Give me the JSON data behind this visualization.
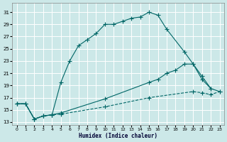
{
  "xlabel": "Humidex (Indice chaleur)",
  "bg_color": "#cce8e8",
  "grid_color": "#ffffff",
  "line_color": "#006666",
  "xlim": [
    -0.5,
    23.5
  ],
  "ylim": [
    12.5,
    32.5
  ],
  "yticks": [
    13,
    15,
    17,
    19,
    21,
    23,
    25,
    27,
    29,
    31
  ],
  "xticks": [
    0,
    1,
    2,
    3,
    4,
    5,
    6,
    7,
    8,
    9,
    10,
    11,
    12,
    13,
    14,
    15,
    16,
    17,
    18,
    19,
    20,
    21,
    22,
    23
  ],
  "line1_x": [
    0,
    1,
    2,
    3,
    4,
    5,
    6,
    7,
    8,
    9,
    10,
    11,
    12,
    13,
    14,
    15,
    16,
    17,
    19,
    20,
    21,
    22
  ],
  "line1_y": [
    16,
    16,
    13.5,
    14,
    14.2,
    19.5,
    23,
    25.5,
    26.5,
    27.5,
    29,
    29,
    29.5,
    30,
    30.2,
    31,
    30.5,
    28.2,
    24.5,
    22.5,
    20,
    18.5
  ],
  "line2_x": [
    0,
    1,
    2,
    3,
    4,
    5,
    10,
    15,
    16,
    17,
    18,
    19,
    20,
    21,
    22,
    23
  ],
  "line2_y": [
    16,
    16,
    13.5,
    14,
    14.2,
    14.5,
    16.8,
    19.5,
    20,
    21,
    21.5,
    22.5,
    22.5,
    20.5,
    18.5,
    18
  ],
  "line3_x": [
    0,
    1,
    2,
    3,
    4,
    5,
    10,
    15,
    20,
    21,
    22,
    23
  ],
  "line3_y": [
    16,
    16,
    13.5,
    14,
    14.2,
    14.3,
    15.5,
    17,
    18,
    17.8,
    17.5,
    18
  ]
}
